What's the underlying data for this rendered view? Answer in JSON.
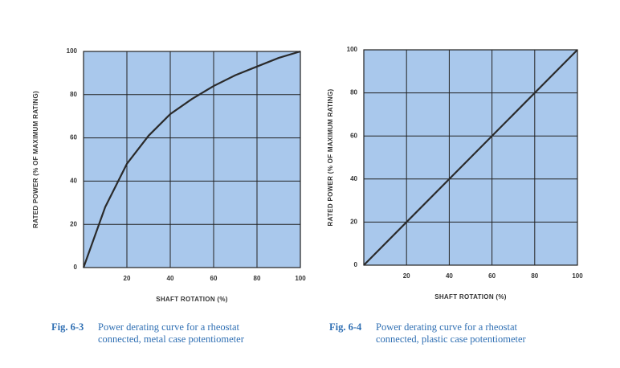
{
  "chart_data": [
    {
      "type": "line",
      "x_label": "SHAFT ROTATION (%)",
      "y_label": "RATED POWER (% OF MAXIMUM RATING)",
      "caption_label": "Fig. 6-3",
      "caption": [
        "Power derating curve for a rheostat",
        "connected, metal case potentiometer"
      ],
      "x": [
        0,
        10,
        20,
        30,
        40,
        50,
        60,
        70,
        80,
        90,
        100
      ],
      "y": [
        0,
        28,
        48,
        61,
        71,
        78,
        84,
        89,
        93,
        97,
        100
      ],
      "color": "#2a2a2a",
      "background": "#a9c8ec",
      "grid": true,
      "xlim": [
        0,
        100
      ],
      "ylim": [
        0,
        100
      ],
      "xticks": [
        20,
        40,
        60,
        80,
        100
      ],
      "yticks": [
        0,
        20,
        40,
        60,
        80,
        100
      ]
    },
    {
      "type": "line",
      "x_label": "SHAFT ROTATION (%)",
      "y_label": "RATED POWER (% OF MAXIMUM RATING)",
      "caption_label": "Fig. 6-4",
      "caption": [
        "Power derating curve for a rheostat",
        "connected, plastic case potentiometer"
      ],
      "x": [
        0,
        100
      ],
      "y": [
        0,
        100
      ],
      "color": "#2a2a2a",
      "background": "#a9c8ec",
      "grid": true,
      "xlim": [
        0,
        100
      ],
      "ylim": [
        0,
        100
      ],
      "xticks": [
        20,
        40,
        60,
        80,
        100
      ],
      "yticks": [
        0,
        20,
        40,
        60,
        80,
        100
      ]
    }
  ]
}
